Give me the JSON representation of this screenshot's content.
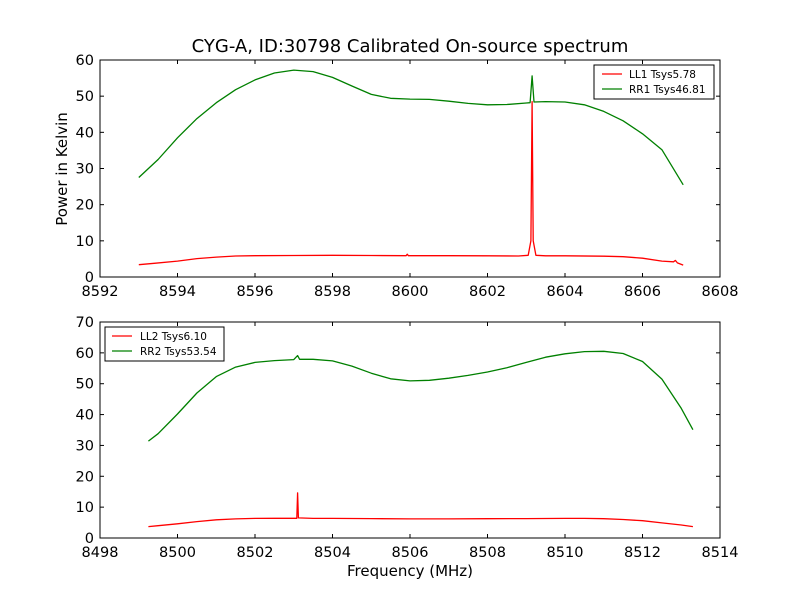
{
  "title": "CYG-A, ID:30798 Calibrated On-source spectrum",
  "chart_data": [
    {
      "type": "line",
      "title": "CYG-A, ID:30798 Calibrated On-source spectrum",
      "xlabel": "",
      "ylabel": "Power in Kelvin",
      "xlim": [
        8592,
        8608
      ],
      "ylim": [
        0,
        60
      ],
      "xticks": [
        8592,
        8594,
        8596,
        8598,
        8600,
        8602,
        8604,
        8606,
        8608
      ],
      "yticks": [
        0,
        10,
        20,
        30,
        40,
        50,
        60
      ],
      "legend_position": "top-right",
      "grid": false,
      "series": [
        {
          "name": "LL1 Tsys5.78",
          "color": "#ff0000",
          "points": [
            [
              8593.0,
              3.4
            ],
            [
              8593.4,
              3.8
            ],
            [
              8594.0,
              4.4
            ],
            [
              8594.5,
              5.1
            ],
            [
              8595.0,
              5.5
            ],
            [
              8595.5,
              5.8
            ],
            [
              8596.0,
              5.9
            ],
            [
              8597.0,
              5.95
            ],
            [
              8598.0,
              6.0
            ],
            [
              8599.0,
              5.95
            ],
            [
              8599.9,
              5.9
            ],
            [
              8599.93,
              6.3
            ],
            [
              8599.96,
              5.9
            ],
            [
              8601.0,
              5.9
            ],
            [
              8602.0,
              5.85
            ],
            [
              8602.8,
              5.8
            ],
            [
              8603.05,
              6.0
            ],
            [
              8603.12,
              10.0
            ],
            [
              8603.15,
              48.5
            ],
            [
              8603.18,
              10.0
            ],
            [
              8603.25,
              6.0
            ],
            [
              8603.5,
              5.85
            ],
            [
              8604.0,
              5.85
            ],
            [
              8605.0,
              5.75
            ],
            [
              8605.5,
              5.6
            ],
            [
              8606.0,
              5.2
            ],
            [
              8606.5,
              4.4
            ],
            [
              8606.8,
              4.2
            ],
            [
              8606.85,
              4.6
            ],
            [
              8606.9,
              3.9
            ],
            [
              8607.05,
              3.3
            ]
          ]
        },
        {
          "name": "RR1 Tsys46.81",
          "color": "#008000",
          "points": [
            [
              8593.0,
              27.5
            ],
            [
              8593.5,
              32.5
            ],
            [
              8594.0,
              38.5
            ],
            [
              8594.5,
              43.8
            ],
            [
              8595.0,
              48.2
            ],
            [
              8595.5,
              51.8
            ],
            [
              8596.0,
              54.5
            ],
            [
              8596.5,
              56.4
            ],
            [
              8597.0,
              57.2
            ],
            [
              8597.5,
              56.8
            ],
            [
              8598.0,
              55.2
            ],
            [
              8598.5,
              52.8
            ],
            [
              8599.0,
              50.5
            ],
            [
              8599.5,
              49.4
            ],
            [
              8600.0,
              49.2
            ],
            [
              8600.5,
              49.1
            ],
            [
              8601.0,
              48.6
            ],
            [
              8601.5,
              48.0
            ],
            [
              8602.0,
              47.6
            ],
            [
              8602.5,
              47.7
            ],
            [
              8603.0,
              48.1
            ],
            [
              8603.1,
              48.2
            ],
            [
              8603.15,
              55.6
            ],
            [
              8603.2,
              48.4
            ],
            [
              8603.5,
              48.5
            ],
            [
              8604.0,
              48.4
            ],
            [
              8604.5,
              47.6
            ],
            [
              8605.0,
              45.8
            ],
            [
              8605.5,
              43.2
            ],
            [
              8606.0,
              39.6
            ],
            [
              8606.5,
              35.2
            ],
            [
              8607.05,
              25.5
            ]
          ]
        }
      ]
    },
    {
      "type": "line",
      "title": "",
      "xlabel": "Frequency (MHz)",
      "ylabel": "",
      "xlim": [
        8498,
        8514
      ],
      "ylim": [
        0,
        70
      ],
      "xticks": [
        8498,
        8500,
        8502,
        8504,
        8506,
        8508,
        8510,
        8512,
        8514
      ],
      "yticks": [
        0,
        10,
        20,
        30,
        40,
        50,
        60,
        70
      ],
      "legend_position": "top-left",
      "grid": false,
      "series": [
        {
          "name": "LL2 Tsys6.10",
          "color": "#ff0000",
          "points": [
            [
              8499.25,
              3.7
            ],
            [
              8499.5,
              4.0
            ],
            [
              8500.0,
              4.6
            ],
            [
              8500.5,
              5.3
            ],
            [
              8501.0,
              5.9
            ],
            [
              8501.5,
              6.2
            ],
            [
              8502.0,
              6.35
            ],
            [
              8502.5,
              6.4
            ],
            [
              8503.0,
              6.4
            ],
            [
              8503.08,
              6.4
            ],
            [
              8503.1,
              14.6
            ],
            [
              8503.12,
              6.5
            ],
            [
              8503.5,
              6.35
            ],
            [
              8504.0,
              6.35
            ],
            [
              8505.0,
              6.3
            ],
            [
              8506.0,
              6.2
            ],
            [
              8507.0,
              6.2
            ],
            [
              8508.0,
              6.25
            ],
            [
              8509.0,
              6.3
            ],
            [
              8510.0,
              6.35
            ],
            [
              8510.5,
              6.35
            ],
            [
              8511.0,
              6.25
            ],
            [
              8511.5,
              6.0
            ],
            [
              8512.0,
              5.6
            ],
            [
              8512.5,
              4.9
            ],
            [
              8513.0,
              4.2
            ],
            [
              8513.3,
              3.7
            ]
          ]
        },
        {
          "name": "RR2 Tsys53.54",
          "color": "#008000",
          "points": [
            [
              8499.25,
              31.4
            ],
            [
              8499.5,
              33.8
            ],
            [
              8500.0,
              40.2
            ],
            [
              8500.5,
              47.0
            ],
            [
              8501.0,
              52.3
            ],
            [
              8501.5,
              55.4
            ],
            [
              8502.0,
              56.9
            ],
            [
              8502.5,
              57.5
            ],
            [
              8503.0,
              57.8
            ],
            [
              8503.1,
              59.1
            ],
            [
              8503.15,
              57.9
            ],
            [
              8503.5,
              57.9
            ],
            [
              8504.0,
              57.4
            ],
            [
              8504.5,
              55.7
            ],
            [
              8505.0,
              53.4
            ],
            [
              8505.5,
              51.6
            ],
            [
              8506.0,
              50.9
            ],
            [
              8506.5,
              51.1
            ],
            [
              8507.0,
              51.8
            ],
            [
              8507.5,
              52.7
            ],
            [
              8508.0,
              53.8
            ],
            [
              8508.5,
              55.2
            ],
            [
              8509.0,
              56.9
            ],
            [
              8509.5,
              58.6
            ],
            [
              8510.0,
              59.7
            ],
            [
              8510.5,
              60.4
            ],
            [
              8511.0,
              60.5
            ],
            [
              8511.5,
              59.8
            ],
            [
              8512.0,
              57.2
            ],
            [
              8512.5,
              51.5
            ],
            [
              8513.0,
              42.0
            ],
            [
              8513.3,
              35.1
            ]
          ]
        }
      ]
    }
  ]
}
